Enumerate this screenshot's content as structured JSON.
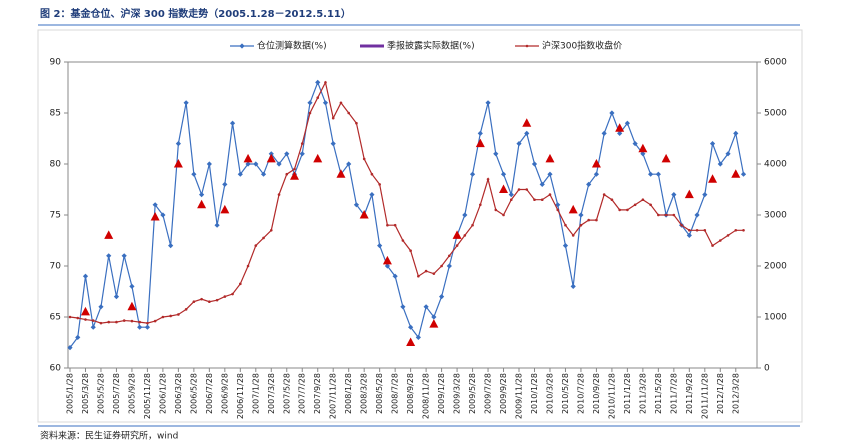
{
  "chart_data": {
    "type": "line",
    "title": "图 2：基金仓位、沪深 300 指数走势（2005.1.28－2012.5.11）",
    "source": "资料来源：民生证券研究所，wind",
    "categories": [
      "2005/1/28",
      null,
      "2005/3/28",
      null,
      "2005/5/28",
      null,
      "2005/7/28",
      null,
      "2005/9/28",
      null,
      "2005/11/28",
      null,
      "2006/1/28",
      null,
      "2006/3/28",
      null,
      "2006/5/28",
      null,
      "2006/7/28",
      null,
      "2006/9/28",
      null,
      "2006/11/28",
      null,
      "2007/1/28",
      null,
      "2007/3/28",
      null,
      "2007/5/28",
      null,
      "2007/7/28",
      null,
      "2007/9/28",
      null,
      "2007/11/28",
      null,
      "2008/1/28",
      null,
      "2008/3/28",
      null,
      "2008/5/28",
      null,
      "2008/7/28",
      null,
      "2008/9/28",
      null,
      "2008/11/28",
      null,
      "2009/1/28",
      null,
      "2009/3/28",
      null,
      "2009/5/28",
      null,
      "2009/7/28",
      null,
      "2009/9/28",
      null,
      "2009/11/28",
      null,
      "2010/1/28",
      null,
      "2010/3/28",
      null,
      "2010/5/28",
      null,
      "2010/7/28",
      null,
      "2010/9/28",
      null,
      "2010/11/28",
      null,
      "2011/1/28",
      null,
      "2011/3/28",
      null,
      "2011/5/28",
      null,
      "2011/7/28",
      null,
      "2011/9/28",
      null,
      "2011/11/28",
      null,
      "2012/1/28",
      null,
      "2012/3/28",
      null
    ],
    "series": [
      {
        "name": "仓位测算数据(%)",
        "color": "#3a6fc0",
        "marker": "diamond",
        "axis": "y",
        "values": [
          62,
          63,
          69,
          64,
          66,
          71,
          67,
          71,
          68,
          64,
          64,
          76,
          75,
          72,
          82,
          86,
          79,
          77,
          80,
          74,
          78,
          84,
          79,
          80,
          80,
          79,
          81,
          80,
          81,
          79,
          81,
          86,
          88,
          86,
          82,
          79,
          80,
          76,
          75,
          77,
          72,
          70,
          69,
          66,
          64,
          63,
          66,
          65,
          67,
          70,
          73,
          75,
          79,
          83,
          86,
          81,
          79,
          77,
          82,
          83,
          80,
          78,
          79,
          76,
          72,
          68,
          75,
          78,
          79,
          83,
          85,
          83,
          84,
          82,
          81,
          79,
          79,
          75,
          77,
          74,
          73,
          75,
          77,
          82,
          80,
          81,
          83,
          79
        ]
      },
      {
        "name": "季报披露实际数据(%)",
        "color": "#7030a0",
        "marker": "triangle",
        "marker_color": "#d00000",
        "axis": "y",
        "values": [
          null,
          null,
          65.5,
          null,
          null,
          73,
          null,
          null,
          66,
          null,
          null,
          74.8,
          null,
          null,
          80,
          null,
          null,
          76,
          null,
          null,
          75.5,
          null,
          null,
          80.5,
          null,
          null,
          80.5,
          null,
          null,
          78.8,
          null,
          null,
          80.5,
          null,
          null,
          79,
          null,
          null,
          75,
          null,
          null,
          70.5,
          null,
          null,
          62.5,
          null,
          null,
          64.3,
          null,
          null,
          73,
          null,
          null,
          82,
          null,
          null,
          77.5,
          null,
          null,
          84,
          null,
          null,
          80.5,
          null,
          null,
          75.5,
          null,
          null,
          80,
          null,
          null,
          83.5,
          null,
          null,
          81.5,
          null,
          null,
          80.5,
          null,
          null,
          77,
          null,
          null,
          78.5,
          null,
          null,
          79,
          null
        ]
      },
      {
        "name": "沪深300指数收盘价",
        "color": "#b22a2a",
        "marker": "dot",
        "axis": "y2",
        "values": [
          1000,
          980,
          950,
          930,
          880,
          900,
          900,
          930,
          920,
          900,
          880,
          920,
          1000,
          1020,
          1050,
          1150,
          1300,
          1350,
          1300,
          1330,
          1400,
          1450,
          1650,
          2000,
          2400,
          2550,
          2700,
          3400,
          3800,
          3900,
          4400,
          5000,
          5300,
          5600,
          4900,
          5200,
          5000,
          4800,
          4100,
          3800,
          3600,
          2800,
          2800,
          2500,
          2300,
          1800,
          1900,
          1850,
          2000,
          2200,
          2400,
          2600,
          2800,
          3200,
          3700,
          3100,
          3000,
          3300,
          3500,
          3500,
          3300,
          3300,
          3400,
          3100,
          2800,
          2600,
          2800,
          2900,
          2900,
          3400,
          3300,
          3100,
          3100,
          3200,
          3300,
          3200,
          3000,
          3000,
          3000,
          2800,
          2700,
          2700,
          2700,
          2400,
          2500,
          2600,
          2700,
          2700
        ]
      }
    ],
    "ylim": [
      60,
      90
    ],
    "yticks": [
      60,
      65,
      70,
      75,
      80,
      85,
      90
    ],
    "y2lim": [
      0,
      6000
    ],
    "y2ticks": [
      0,
      1000,
      2000,
      3000,
      4000,
      5000,
      6000
    ]
  }
}
